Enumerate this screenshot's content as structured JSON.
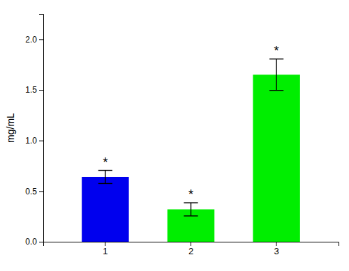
{
  "chart_data": {
    "type": "bar",
    "categories": [
      "1",
      "2",
      "3"
    ],
    "values": [
      0.64,
      0.32,
      1.65
    ],
    "errors": [
      0.065,
      0.065,
      0.155
    ],
    "colors": [
      "#0000ee",
      "#00ee00",
      "#00ee00"
    ],
    "annotations": [
      "*",
      "*",
      "*"
    ],
    "ylabel": "mg/mL",
    "ylim": [
      0,
      2.25
    ],
    "yticks": [
      {
        "value": 0,
        "label": "0.0"
      },
      0.5,
      {
        "value": 1,
        "label": "1.0"
      },
      1.5,
      {
        "value": 2,
        "label": "2.0"
      }
    ],
    "grid": false
  }
}
